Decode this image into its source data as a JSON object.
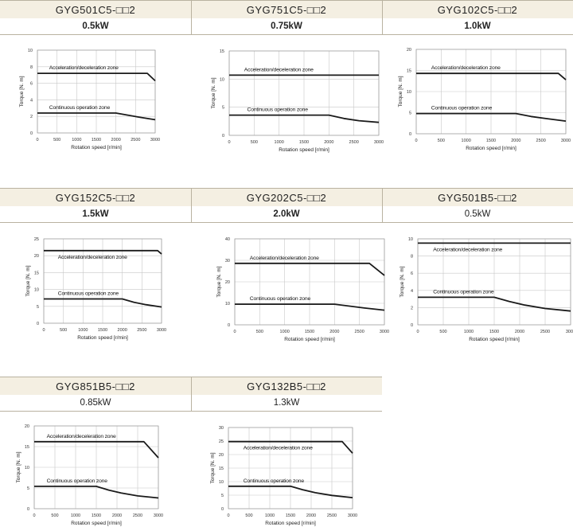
{
  "chart_data": [
    {
      "type": "line",
      "title": "GYG501C5-□□2",
      "power": "0.5kW",
      "power_bold": true,
      "xlabel": "Rotation speed [r/min]",
      "ylabel": "Torque [N. m]",
      "xlim": [
        0,
        3000
      ],
      "ylim": [
        0,
        10
      ],
      "xticks": [
        "0",
        "500",
        "1000",
        "1500",
        "2000",
        "2500",
        "3000"
      ],
      "yticks": [
        "0",
        "2",
        "4",
        "6",
        "8",
        "10"
      ],
      "zones": [
        {
          "name": "Acceleration/deceleration zone",
          "x": [
            0,
            2800,
            3000
          ],
          "y": [
            7.2,
            7.2,
            6.3
          ]
        },
        {
          "name": "Continuous operation zone",
          "x": [
            0,
            2000,
            2300,
            2600,
            3000
          ],
          "y": [
            2.4,
            2.4,
            2.15,
            1.9,
            1.6
          ]
        }
      ]
    },
    {
      "type": "line",
      "title": "GYG751C5-□□2",
      "power": "0.75kW",
      "power_bold": true,
      "xlabel": "Rotation speed [r/min]",
      "ylabel": "Torque [N. m]",
      "xlim": [
        0,
        3000
      ],
      "ylim": [
        0,
        15
      ],
      "xticks": [
        "0",
        "500",
        "1000",
        "1500",
        "2000",
        "2500",
        "3000"
      ],
      "yticks": [
        "0",
        "5",
        "10",
        "15"
      ],
      "zones": [
        {
          "name": "Acceleration/deceleration zone",
          "x": [
            0,
            3000
          ],
          "y": [
            10.7,
            10.7
          ]
        },
        {
          "name": "Continuous operation zone",
          "x": [
            0,
            2000,
            2300,
            2600,
            3000
          ],
          "y": [
            3.6,
            3.6,
            3.0,
            2.6,
            2.3
          ]
        }
      ]
    },
    {
      "type": "line",
      "title": "GYG102C5-□□2",
      "power": "1.0kW",
      "power_bold": true,
      "xlabel": "Rotation speed [r/min]",
      "ylabel": "Torque [N. m]",
      "xlim": [
        0,
        3000
      ],
      "ylim": [
        0,
        20
      ],
      "xticks": [
        "0",
        "500",
        "1000",
        "1500",
        "2000",
        "2500",
        "3000"
      ],
      "yticks": [
        "0",
        "5",
        "10",
        "15",
        "20"
      ],
      "zones": [
        {
          "name": "Acceleration/deceleration zone",
          "x": [
            0,
            2850,
            3000
          ],
          "y": [
            14.3,
            14.3,
            12.8
          ]
        },
        {
          "name": "Continuous operation zone",
          "x": [
            0,
            2000,
            2300,
            2600,
            3000
          ],
          "y": [
            4.8,
            4.8,
            4.1,
            3.6,
            3.0
          ]
        }
      ]
    },
    {
      "type": "line",
      "title": "GYG152C5-□□2",
      "power": "1.5kW",
      "power_bold": true,
      "xlabel": "Rotation speed [r/min]",
      "ylabel": "Torque [N. m]",
      "xlim": [
        0,
        3000
      ],
      "ylim": [
        0,
        25
      ],
      "xticks": [
        "0",
        "500",
        "1000",
        "1500",
        "2000",
        "2500",
        "3000"
      ],
      "yticks": [
        "0",
        "5",
        "10",
        "15",
        "20",
        "25"
      ],
      "zones": [
        {
          "name": "Acceleration/deceleration zone",
          "x": [
            0,
            2900,
            3000
          ],
          "y": [
            21.5,
            21.5,
            20.5
          ]
        },
        {
          "name": "Continuous operation zone",
          "x": [
            0,
            2000,
            2300,
            2600,
            3000
          ],
          "y": [
            7.2,
            7.2,
            6.2,
            5.5,
            4.8
          ]
        }
      ]
    },
    {
      "type": "line",
      "title": "GYG202C5-□□2",
      "power": "2.0kW",
      "power_bold": true,
      "xlabel": "Rotation speed [r/min]",
      "ylabel": "Torque [N. m]",
      "xlim": [
        0,
        3000
      ],
      "ylim": [
        0,
        40
      ],
      "xticks": [
        "0",
        "500",
        "1000",
        "1500",
        "2000",
        "2500",
        "3000"
      ],
      "yticks": [
        "0",
        "10",
        "20",
        "30",
        "40"
      ],
      "zones": [
        {
          "name": "Acceleration/deceleration zone",
          "x": [
            0,
            2700,
            3000
          ],
          "y": [
            28.6,
            28.6,
            23
          ]
        },
        {
          "name": "Continuous operation zone",
          "x": [
            0,
            2000,
            2300,
            2600,
            3000
          ],
          "y": [
            9.6,
            9.6,
            8.7,
            7.8,
            6.8
          ]
        }
      ]
    },
    {
      "type": "line",
      "title": "GYG501B5-□□2",
      "power": "0.5kW",
      "power_bold": false,
      "xlabel": "Rotation speed [r/min]",
      "ylabel": "Torque [N. m]",
      "xlim": [
        0,
        3000
      ],
      "ylim": [
        0,
        10
      ],
      "xticks": [
        "0",
        "500",
        "1000",
        "1500",
        "2000",
        "2500",
        "3000"
      ],
      "yticks": [
        "0",
        "2",
        "4",
        "6",
        "8",
        "10"
      ],
      "zones": [
        {
          "name": "Acceleration/deceleration zone",
          "x": [
            0,
            3000
          ],
          "y": [
            9.5,
            9.5
          ]
        },
        {
          "name": "Continuous operation zone",
          "x": [
            0,
            1500,
            1800,
            2100,
            2500,
            3000
          ],
          "y": [
            3.2,
            3.2,
            2.7,
            2.3,
            1.9,
            1.6
          ]
        }
      ]
    },
    {
      "type": "line",
      "title": "GYG851B5-□□2",
      "power": "0.85kW",
      "power_bold": false,
      "xlabel": "Rotation speed [r/min]",
      "ylabel": "Torque [N. m]",
      "xlim": [
        0,
        3000
      ],
      "ylim": [
        0,
        20
      ],
      "xticks": [
        "0",
        "500",
        "1000",
        "1500",
        "2000",
        "2500",
        "3000"
      ],
      "yticks": [
        "0",
        "5",
        "10",
        "15",
        "20"
      ],
      "zones": [
        {
          "name": "Acceleration/deceleration zone",
          "x": [
            0,
            2650,
            3000
          ],
          "y": [
            16.2,
            16.2,
            12.3
          ]
        },
        {
          "name": "Continuous operation zone",
          "x": [
            0,
            1500,
            1800,
            2100,
            2500,
            3000
          ],
          "y": [
            5.4,
            5.4,
            4.5,
            3.8,
            3.1,
            2.6
          ]
        }
      ]
    },
    {
      "type": "line",
      "title": "GYG132B5-□□2",
      "power": "1.3kW",
      "power_bold": false,
      "xlabel": "Rotation speed [r/min]",
      "ylabel": "Torque [N. m]",
      "xlim": [
        0,
        3000
      ],
      "ylim": [
        0,
        30
      ],
      "xticks": [
        "0",
        "500",
        "1000",
        "1500",
        "2000",
        "2500",
        "3000"
      ],
      "yticks": [
        "0",
        "5",
        "10",
        "15",
        "20",
        "25",
        "30"
      ],
      "zones": [
        {
          "name": "Acceleration/deceleration zone",
          "x": [
            0,
            2750,
            3000
          ],
          "y": [
            24.8,
            24.8,
            20.5
          ]
        },
        {
          "name": "Continuous operation zone",
          "x": [
            0,
            1500,
            1800,
            2100,
            2500,
            3000
          ],
          "y": [
            8.3,
            8.3,
            7.0,
            5.9,
            4.9,
            4.1
          ]
        }
      ]
    }
  ]
}
